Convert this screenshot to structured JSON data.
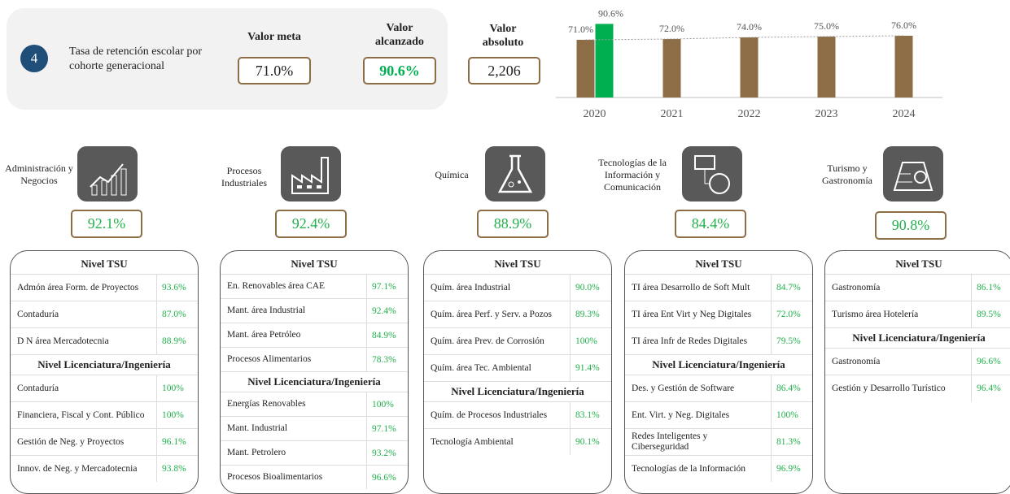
{
  "header": {
    "number": "4",
    "indicator": "Tasa de retención escolar por cohorte generacional",
    "meta_value": "71.0%",
    "achieved_value": "90.6%",
    "absolute_label": "Valor absoluto",
    "absolute_value": "2,206"
  },
  "chart_data": {
    "type": "bar",
    "categories": [
      "2020",
      "2021",
      "2022",
      "2023",
      "2024"
    ],
    "ylim": [
      0,
      100
    ],
    "series": [
      {
        "name": "Valor meta",
        "color": "#8c6d46",
        "values": [
          71.0,
          72.0,
          74.0,
          75.0,
          76.0
        ],
        "value_labels": [
          "71.0%",
          "72.0%",
          "74.0%",
          "75.0%",
          "76.0%"
        ]
      },
      {
        "name": "Valor alcanzado",
        "color": "#00b050",
        "values": [
          90.6,
          null,
          null,
          null,
          null
        ],
        "value_labels": [
          "90.6%",
          null,
          null,
          null,
          null
        ]
      }
    ]
  },
  "areas": [
    {
      "name": "Administración y Negocios",
      "value": "92.1%",
      "sections": [
        {
          "title": "Nivel TSU",
          "rows": [
            [
              "Admón área Form. de Proyectos",
              "93.6%"
            ],
            [
              "Contaduría",
              "87.0%"
            ],
            [
              "D N área Mercadotecnia",
              "88.9%"
            ]
          ]
        },
        {
          "title": "Nivel Licenciatura/Ingeniería",
          "rows": [
            [
              "Contaduría",
              "100%"
            ],
            [
              "Financiera, Fiscal y Cont. Público",
              "100%"
            ],
            [
              "Gestión de Neg. y Proyectos",
              "96.1%"
            ],
            [
              "Innov. de Neg. y Mercadotecnia",
              "93.8%"
            ]
          ]
        }
      ]
    },
    {
      "name": "Procesos Industriales",
      "value": "92.4%",
      "sections": [
        {
          "title": "Nivel TSU",
          "rows": [
            [
              "En. Renovables área CAE",
              "97.1%"
            ],
            [
              "Mant. área Industrial",
              "92.4%"
            ],
            [
              "Mant. área Petróleo",
              "84.9%"
            ],
            [
              "Procesos Alimentarios",
              "78.3%"
            ]
          ]
        },
        {
          "title": "Nivel Licenciatura/Ingeniería",
          "rows": [
            [
              "Energías Renovables",
              "100%"
            ],
            [
              "Mant. Industrial",
              "97.1%"
            ],
            [
              "Mant. Petrolero",
              "93.2%"
            ],
            [
              "Procesos Bioalimentarios",
              "96.6%"
            ]
          ]
        }
      ]
    },
    {
      "name": "Química",
      "value": "88.9%",
      "sections": [
        {
          "title": "Nivel TSU",
          "rows": [
            [
              "Quím. área Industrial",
              "90.0%"
            ],
            [
              "Quím. área Perf. y Serv. a Pozos",
              "89.3%"
            ],
            [
              "Quím. área Prev. de Corrosión",
              "100%"
            ],
            [
              "Quím. área Tec. Ambiental",
              "91.4%"
            ]
          ]
        },
        {
          "title": "Nivel Licenciatura/Ingeniería",
          "rows": [
            [
              "Quím. de Procesos Industriales",
              "83.1%"
            ],
            [
              "Tecnología Ambiental",
              "90.1%"
            ]
          ]
        }
      ]
    },
    {
      "name": "Tecnologías de la Información y Comunicación",
      "value": "84.4%",
      "sections": [
        {
          "title": "Nivel TSU",
          "rows": [
            [
              "TI área Desarrollo de Soft Mult",
              "84.7%"
            ],
            [
              "TI área Ent Virt y Neg Digitales",
              "72.0%"
            ],
            [
              "TI área Infr de Redes Digitales",
              "79.5%"
            ]
          ]
        },
        {
          "title": "Nivel Licenciatura/Ingeniería",
          "rows": [
            [
              "Des. y Gestión de Software",
              "86.4%"
            ],
            [
              "Ent. Virt. y Neg. Digitales",
              "100%"
            ],
            [
              "Redes Inteligentes y Ciberseguridad",
              "81.3%"
            ],
            [
              "Tecnologías de la Información",
              "96.9%"
            ]
          ]
        }
      ]
    },
    {
      "name": "Turismo y Gastronomía",
      "value": "90.8%",
      "sections": [
        {
          "title": "Nivel TSU",
          "rows": [
            [
              "Gastronomía",
              "86.1%"
            ],
            [
              "Turismo área Hotelería",
              "89.5%"
            ]
          ]
        },
        {
          "title": "Nivel Licenciatura/Ingeniería",
          "rows": [
            [
              "Gastronomía",
              "96.6%"
            ],
            [
              "Gestión y Desarrollo Turístico",
              "96.4%"
            ]
          ]
        }
      ]
    }
  ]
}
